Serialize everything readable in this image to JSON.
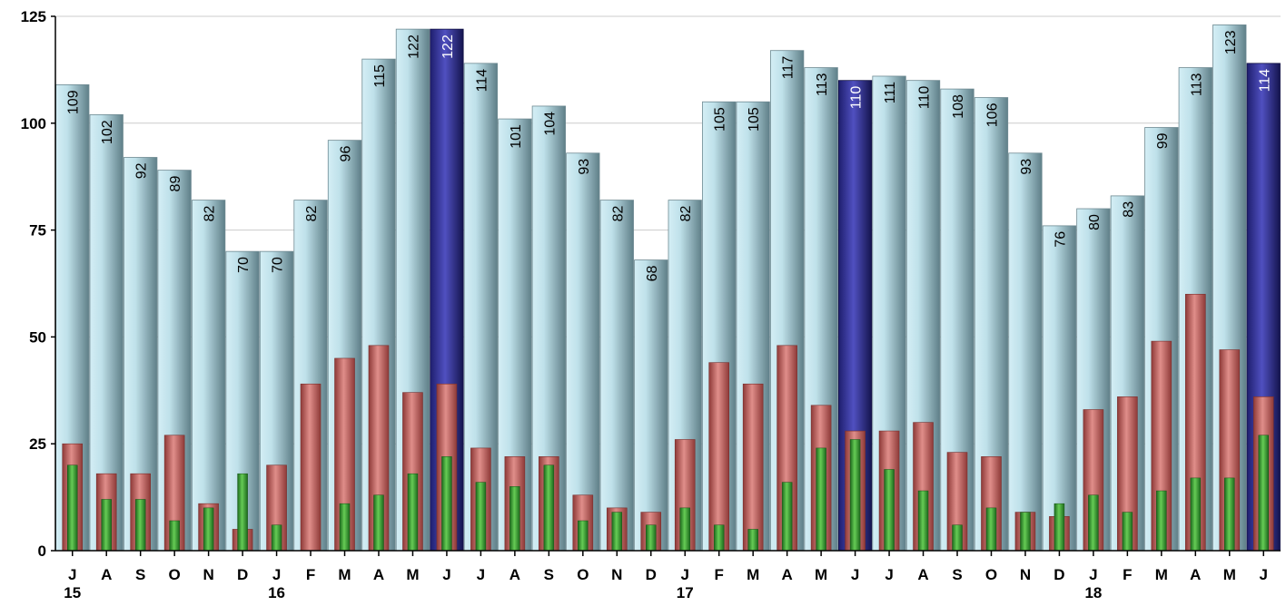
{
  "chart_data": {
    "type": "bar",
    "title": "",
    "xlabel": "",
    "ylabel": "",
    "ylim": [
      0,
      125
    ],
    "yticks": [
      0,
      25,
      50,
      75,
      100,
      125
    ],
    "grid": true,
    "categories": [
      "J",
      "A",
      "S",
      "O",
      "N",
      "D",
      "J",
      "F",
      "M",
      "A",
      "M",
      "J",
      "J",
      "A",
      "S",
      "O",
      "N",
      "D",
      "J",
      "F",
      "M",
      "A",
      "M",
      "J",
      "J",
      "A",
      "S",
      "O",
      "N",
      "D",
      "J",
      "F",
      "M",
      "A",
      "M",
      "J"
    ],
    "year_labels": [
      {
        "index": 0,
        "label": "15"
      },
      {
        "index": 6,
        "label": "16"
      },
      {
        "index": 18,
        "label": "17"
      },
      {
        "index": 30,
        "label": "18"
      }
    ],
    "highlight_indices": [
      11,
      23,
      35
    ],
    "series": [
      {
        "values": [
          109,
          102,
          92,
          89,
          82,
          70,
          70,
          82,
          96,
          115,
          122,
          122,
          114,
          101,
          104,
          93,
          82,
          68,
          82,
          105,
          105,
          117,
          113,
          110,
          111,
          110,
          108,
          106,
          93,
          76,
          80,
          83,
          99,
          113,
          123,
          114
        ],
        "color": "#bfe1ea",
        "highlight_color": "#2a2a8c",
        "labeled": true
      },
      {
        "values": [
          25,
          18,
          18,
          27,
          11,
          5,
          20,
          39,
          45,
          48,
          37,
          39,
          24,
          22,
          22,
          13,
          10,
          9,
          26,
          44,
          39,
          48,
          34,
          28,
          28,
          30,
          23,
          22,
          9,
          8,
          33,
          36,
          49,
          60,
          47,
          36
        ],
        "color": "#c0504d"
      },
      {
        "values": [
          20,
          12,
          12,
          7,
          10,
          18,
          6,
          0,
          11,
          13,
          18,
          22,
          16,
          15,
          20,
          7,
          9,
          6,
          10,
          6,
          5,
          16,
          24,
          26,
          19,
          14,
          6,
          10,
          9,
          11,
          13,
          9,
          14,
          17,
          17,
          27
        ],
        "color": "#2e8b2e"
      }
    ]
  }
}
